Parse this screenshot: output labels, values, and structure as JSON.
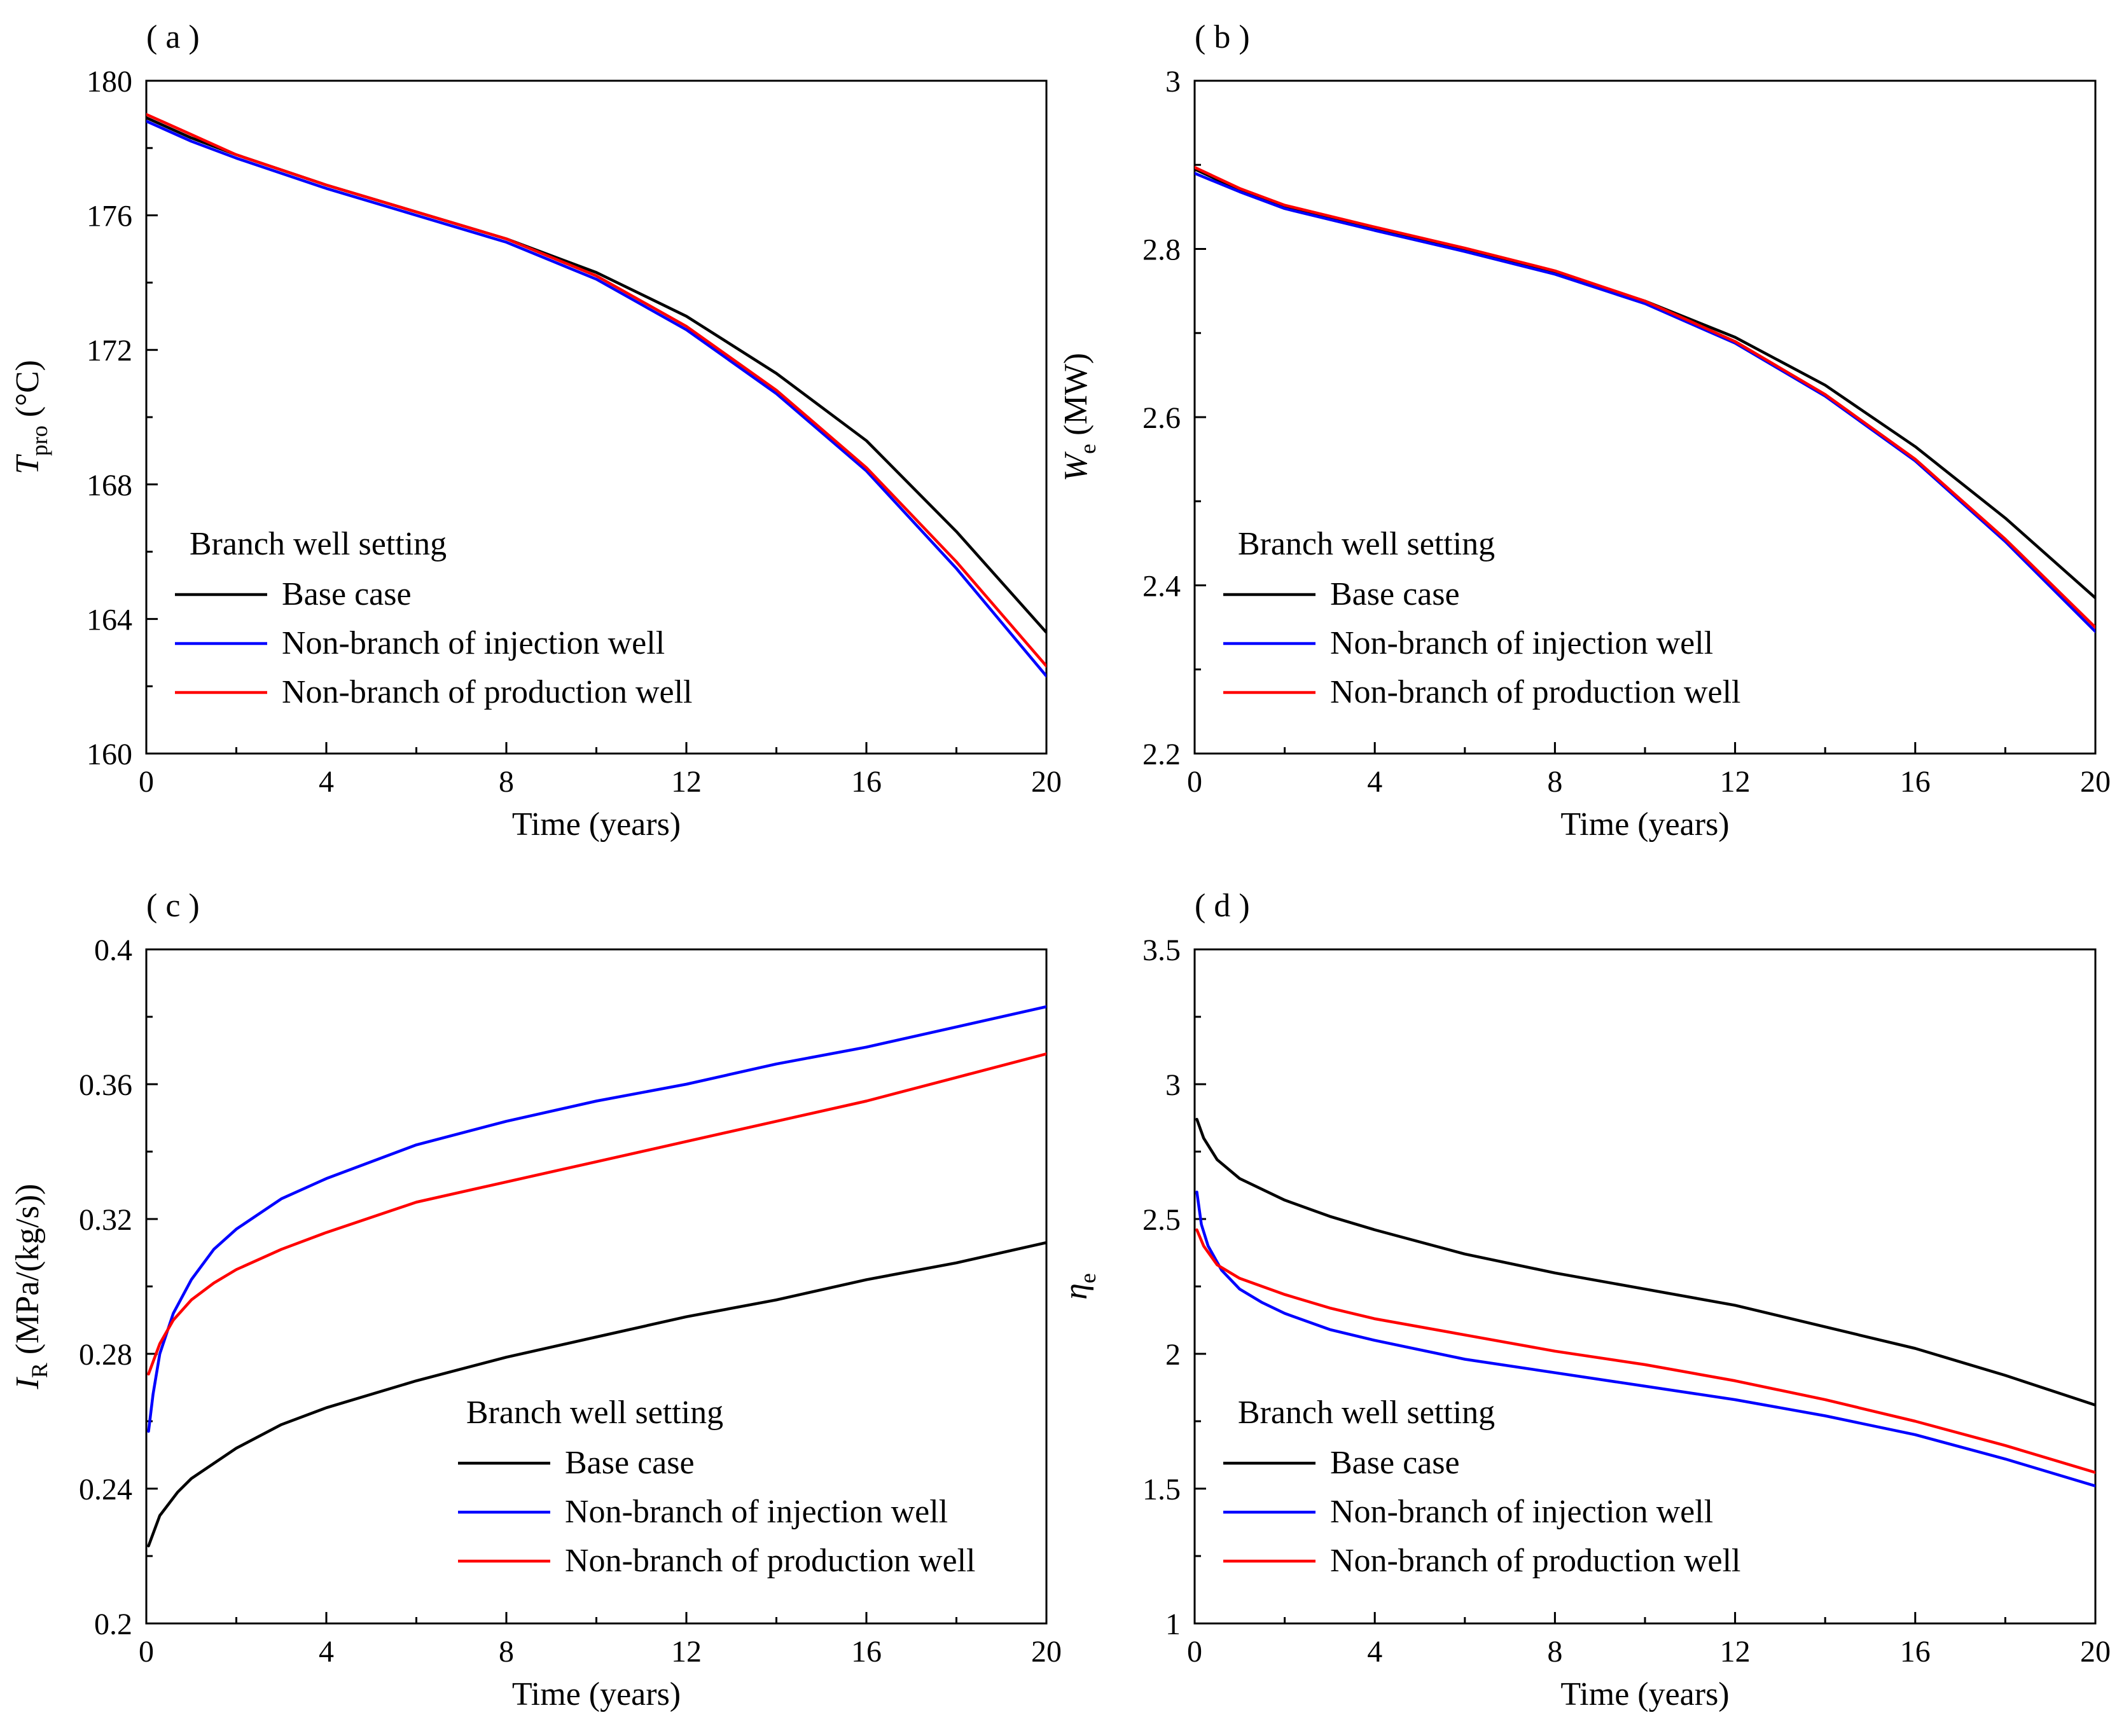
{
  "chart_data": [
    {
      "type": "line",
      "panel_label": "( a )",
      "xlabel": "Time (years)",
      "ylabel_symbol": "T",
      "ylabel_subscript": "pro",
      "ylabel_unit": " (°C)",
      "xlim": [
        0,
        20
      ],
      "ylim": [
        160,
        180
      ],
      "xticks": [
        "0",
        "4",
        "8",
        "12",
        "16",
        "20"
      ],
      "yticks": [
        "160",
        "164",
        "168",
        "172",
        "176",
        "180"
      ],
      "legend_title": "Branch well setting",
      "legend_position": "lower-left",
      "series": [
        {
          "name": "Base case",
          "color": "#000000",
          "x": [
            0,
            1,
            2,
            4,
            6,
            8,
            10,
            12,
            14,
            16,
            18,
            20
          ],
          "values": [
            178.9,
            178.3,
            177.8,
            176.9,
            176.1,
            175.3,
            174.3,
            173.0,
            171.3,
            169.3,
            166.6,
            163.6
          ]
        },
        {
          "name": "Non-branch of injection well",
          "color": "#0000ff",
          "x": [
            0,
            1,
            2,
            4,
            6,
            8,
            10,
            12,
            14,
            16,
            18,
            20
          ],
          "values": [
            178.8,
            178.2,
            177.7,
            176.8,
            176.0,
            175.2,
            174.1,
            172.6,
            170.7,
            168.4,
            165.5,
            162.3
          ]
        },
        {
          "name": "Non-branch of production well",
          "color": "#ff0000",
          "x": [
            0,
            1,
            2,
            4,
            6,
            8,
            10,
            12,
            14,
            16,
            18,
            20
          ],
          "values": [
            179.0,
            178.4,
            177.8,
            176.9,
            176.1,
            175.3,
            174.2,
            172.7,
            170.8,
            168.5,
            165.7,
            162.6
          ]
        }
      ]
    },
    {
      "type": "line",
      "panel_label": "( b )",
      "xlabel": "Time (years)",
      "ylabel_symbol": "W",
      "ylabel_subscript": "e",
      "ylabel_unit": " (MW)",
      "xlim": [
        0,
        20
      ],
      "ylim": [
        2.2,
        3
      ],
      "xticks": [
        "0",
        "4",
        "8",
        "12",
        "16",
        "20"
      ],
      "yticks": [
        "2.2",
        "2.4",
        "2.6",
        "2.8",
        "3"
      ],
      "legend_title": "Branch well setting",
      "legend_position": "lower-left",
      "series": [
        {
          "name": "Base case",
          "color": "#000000",
          "x": [
            0,
            1,
            2,
            4,
            6,
            8,
            10,
            12,
            14,
            16,
            18,
            20
          ],
          "values": [
            2.895,
            2.87,
            2.85,
            2.825,
            2.8,
            2.773,
            2.738,
            2.695,
            2.638,
            2.565,
            2.48,
            2.385
          ]
        },
        {
          "name": "Non-branch of injection well",
          "color": "#0000ff",
          "x": [
            0,
            1,
            2,
            4,
            6,
            8,
            10,
            12,
            14,
            16,
            18,
            20
          ],
          "values": [
            2.89,
            2.868,
            2.848,
            2.822,
            2.797,
            2.77,
            2.735,
            2.688,
            2.625,
            2.548,
            2.452,
            2.345
          ]
        },
        {
          "name": "Non-branch of production well",
          "color": "#ff0000",
          "x": [
            0,
            1,
            2,
            4,
            6,
            8,
            10,
            12,
            14,
            16,
            18,
            20
          ],
          "values": [
            2.897,
            2.872,
            2.852,
            2.826,
            2.801,
            2.774,
            2.738,
            2.69,
            2.627,
            2.55,
            2.455,
            2.35
          ]
        }
      ]
    },
    {
      "type": "line",
      "panel_label": "( c )",
      "xlabel": "Time (years)",
      "ylabel_symbol": "I",
      "ylabel_subscript": "R",
      "ylabel_unit": " (MPa/(kg/s))",
      "xlim": [
        0,
        20
      ],
      "ylim": [
        0.2,
        0.4
      ],
      "xticks": [
        "0",
        "4",
        "8",
        "12",
        "16",
        "20"
      ],
      "yticks": [
        "0.2",
        "0.24",
        "0.28",
        "0.32",
        "0.36",
        "0.4"
      ],
      "legend_title": "Branch well setting",
      "legend_position": "lower-right",
      "series": [
        {
          "name": "Base case",
          "color": "#000000",
          "x": [
            0.05,
            0.3,
            0.7,
            1,
            2,
            3,
            4,
            6,
            8,
            10,
            12,
            14,
            16,
            18,
            20
          ],
          "values": [
            0.223,
            0.232,
            0.239,
            0.243,
            0.252,
            0.259,
            0.264,
            0.272,
            0.279,
            0.285,
            0.291,
            0.296,
            0.302,
            0.307,
            0.313
          ]
        },
        {
          "name": "Non-branch of injection well",
          "color": "#0000ff",
          "x": [
            0.05,
            0.15,
            0.3,
            0.6,
            1,
            1.5,
            2,
            3,
            4,
            6,
            8,
            10,
            12,
            14,
            16,
            18,
            20
          ],
          "values": [
            0.257,
            0.268,
            0.28,
            0.292,
            0.302,
            0.311,
            0.317,
            0.326,
            0.332,
            0.342,
            0.349,
            0.355,
            0.36,
            0.366,
            0.371,
            0.377,
            0.383
          ]
        },
        {
          "name": "Non-branch of production well",
          "color": "#ff0000",
          "x": [
            0.05,
            0.3,
            0.6,
            1,
            1.5,
            2,
            3,
            4,
            6,
            8,
            10,
            12,
            14,
            16,
            18,
            20
          ],
          "values": [
            0.274,
            0.283,
            0.29,
            0.296,
            0.301,
            0.305,
            0.311,
            0.316,
            0.325,
            0.331,
            0.337,
            0.343,
            0.349,
            0.355,
            0.362,
            0.369
          ]
        }
      ]
    },
    {
      "type": "line",
      "panel_label": "( d )",
      "xlabel": "Time (years)",
      "ylabel_symbol": "η",
      "ylabel_subscript": "e",
      "ylabel_unit": "",
      "xlim": [
        0,
        20
      ],
      "ylim": [
        1,
        3.5
      ],
      "xticks": [
        "0",
        "4",
        "8",
        "12",
        "16",
        "20"
      ],
      "yticks": [
        "1",
        "1.5",
        "2",
        "2.5",
        "3",
        "3.5"
      ],
      "legend_title": "Branch well setting",
      "legend_position": "lower-left",
      "series": [
        {
          "name": "Base case",
          "color": "#000000",
          "x": [
            0.05,
            0.2,
            0.5,
            1,
            2,
            3,
            4,
            6,
            8,
            10,
            12,
            14,
            16,
            18,
            20
          ],
          "values": [
            2.87,
            2.8,
            2.72,
            2.65,
            2.57,
            2.51,
            2.46,
            2.37,
            2.3,
            2.24,
            2.18,
            2.1,
            2.02,
            1.92,
            1.81
          ]
        },
        {
          "name": "Non-branch of injection well",
          "color": "#0000ff",
          "x": [
            0.05,
            0.15,
            0.3,
            0.6,
            1,
            1.5,
            2,
            3,
            4,
            6,
            8,
            10,
            12,
            14,
            16,
            18,
            20
          ],
          "values": [
            2.6,
            2.48,
            2.4,
            2.31,
            2.24,
            2.19,
            2.15,
            2.09,
            2.05,
            1.98,
            1.93,
            1.88,
            1.83,
            1.77,
            1.7,
            1.61,
            1.51
          ]
        },
        {
          "name": "Non-branch of production well",
          "color": "#ff0000",
          "x": [
            0.05,
            0.2,
            0.5,
            1,
            1.5,
            2,
            3,
            4,
            6,
            8,
            10,
            12,
            14,
            16,
            18,
            20
          ],
          "values": [
            2.46,
            2.4,
            2.33,
            2.28,
            2.25,
            2.22,
            2.17,
            2.13,
            2.07,
            2.01,
            1.96,
            1.9,
            1.83,
            1.75,
            1.66,
            1.56
          ]
        }
      ]
    }
  ]
}
